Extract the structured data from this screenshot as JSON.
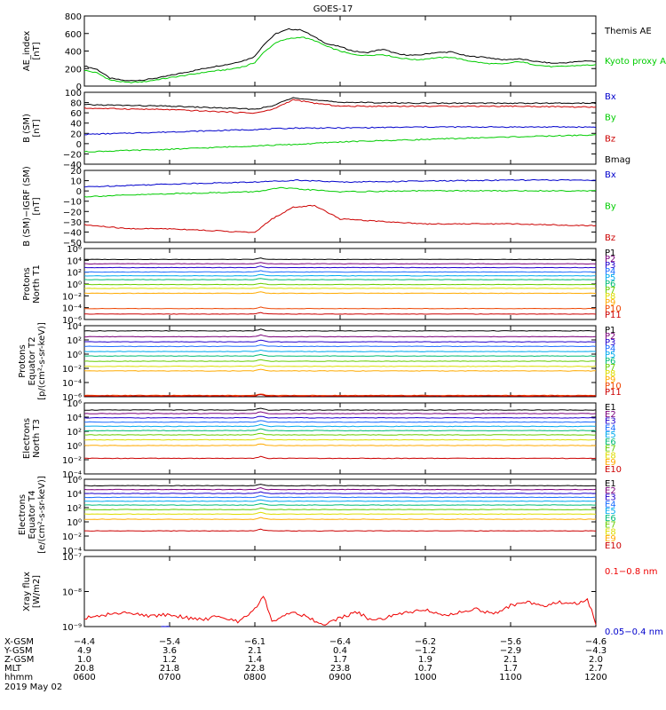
{
  "title": "GOES-17",
  "chart_data": [
    {
      "type": "line",
      "ylabel": "AE_index [nT]",
      "ylabel_lines": [
        "AE_index",
        "[nT]"
      ],
      "ylim": [
        0,
        800
      ],
      "yticks": [
        "800",
        "600",
        "400",
        "200",
        "0"
      ],
      "series": [
        {
          "name": "Themis AE",
          "color": "#000000",
          "x": [
            6.0,
            6.15,
            6.3,
            6.5,
            6.7,
            6.9,
            7.1,
            7.3,
            7.5,
            7.7,
            7.9,
            8.0,
            8.1,
            8.25,
            8.4,
            8.55,
            8.7,
            8.85,
            9.0,
            9.15,
            9.3,
            9.5,
            9.7,
            9.9,
            10.1,
            10.3,
            10.5,
            10.7,
            10.9,
            11.1,
            11.3,
            11.5,
            11.7,
            11.9,
            12.0
          ],
          "y": [
            230,
            190,
            90,
            60,
            70,
            100,
            140,
            180,
            220,
            250,
            300,
            340,
            470,
            600,
            650,
            640,
            560,
            480,
            450,
            400,
            380,
            420,
            360,
            350,
            380,
            390,
            340,
            330,
            300,
            310,
            280,
            260,
            270,
            290,
            280
          ]
        },
        {
          "name": "Kyoto proxy AE",
          "color": "#00cc00",
          "x": [
            6.0,
            6.15,
            6.3,
            6.5,
            6.7,
            6.9,
            7.1,
            7.3,
            7.5,
            7.7,
            7.9,
            8.0,
            8.1,
            8.25,
            8.4,
            8.55,
            8.7,
            8.85,
            9.0,
            9.15,
            9.3,
            9.5,
            9.7,
            9.9,
            10.1,
            10.3,
            10.5,
            10.7,
            10.9,
            11.1,
            11.3,
            11.5,
            11.7,
            11.9,
            12.0
          ],
          "y": [
            180,
            150,
            70,
            40,
            50,
            80,
            110,
            140,
            170,
            190,
            230,
            270,
            380,
            500,
            540,
            560,
            520,
            450,
            400,
            360,
            350,
            360,
            320,
            300,
            320,
            330,
            290,
            260,
            250,
            280,
            240,
            220,
            230,
            240,
            240
          ]
        }
      ]
    },
    {
      "type": "line",
      "ylabel": "B (SM) [nT]",
      "ylabel_lines": [
        "B (SM)",
        "[nT]"
      ],
      "ylim": [
        -45,
        100
      ],
      "yticks": [
        "100",
        "80",
        "60",
        "40",
        "20",
        "0",
        "−20",
        "−40"
      ],
      "series": [
        {
          "name": "Bx",
          "color": "#0000cc",
          "x": [
            6.0,
            7.0,
            8.0,
            8.5,
            9.0,
            10.0,
            11.0,
            12.0
          ],
          "y": [
            15,
            20,
            25,
            28,
            28,
            30,
            30,
            30
          ]
        },
        {
          "name": "By",
          "color": "#00cc00",
          "x": [
            6.0,
            7.0,
            8.0,
            8.5,
            9.0,
            10.0,
            11.0,
            12.0
          ],
          "y": [
            -20,
            -15,
            -8,
            -5,
            0,
            5,
            10,
            14
          ]
        },
        {
          "name": "Bz",
          "color": "#cc0000",
          "x": [
            6.0,
            7.0,
            8.0,
            8.2,
            8.45,
            8.7,
            9.0,
            10.0,
            11.0,
            12.0
          ],
          "y": [
            68,
            65,
            58,
            65,
            85,
            78,
            72,
            72,
            72,
            70
          ]
        },
        {
          "name": "Bmag",
          "color": "#000000",
          "x": [
            6.0,
            7.0,
            8.0,
            8.2,
            8.45,
            8.7,
            9.0,
            10.0,
            11.0,
            12.0
          ],
          "y": [
            75,
            72,
            66,
            72,
            90,
            84,
            80,
            78,
            78,
            78
          ]
        }
      ]
    },
    {
      "type": "line",
      "ylabel": "B (SM)−IGRF (SM) [nT]",
      "ylabel_lines": [
        "B (SM)−IGRF (SM)",
        "[nT]"
      ],
      "ylim": [
        -52,
        22
      ],
      "yticks": [
        "20",
        "10",
        "0",
        "−10",
        "−20",
        "−30",
        "−40",
        "−50"
      ],
      "series": [
        {
          "name": "Bx",
          "color": "#0000cc",
          "x": [
            6.0,
            7.0,
            8.0,
            8.5,
            9.0,
            10.0,
            11.0,
            12.0
          ],
          "y": [
            5,
            8,
            10,
            12,
            10,
            11,
            12,
            12
          ]
        },
        {
          "name": "By",
          "color": "#00cc00",
          "x": [
            6.0,
            7.0,
            8.0,
            8.3,
            9.0,
            10.0,
            11.0,
            12.0
          ],
          "y": [
            -5,
            -2,
            0,
            4,
            0,
            1,
            1,
            1
          ]
        },
        {
          "name": "Bz",
          "color": "#cc0000",
          "x": [
            6.0,
            6.5,
            7.0,
            7.5,
            8.0,
            8.2,
            8.45,
            8.7,
            9.0,
            10.0,
            11.0,
            12.0
          ],
          "y": [
            -34,
            -38,
            -38,
            -40,
            -42,
            -28,
            -16,
            -14,
            -28,
            -33,
            -33,
            -35
          ]
        }
      ]
    },
    {
      "type": "line",
      "ylabel": "Protons North T1",
      "ylabel_lines": [
        "Protons",
        "North T1"
      ],
      "yscale": "log",
      "ylim": [
        -7,
        6
      ],
      "yticks": [
        "10⁶",
        "10⁴",
        "10²",
        "10⁰",
        "10⁻²",
        "10⁻⁴",
        "10⁻⁶"
      ],
      "series": [
        {
          "name": "P1",
          "color": "#000000",
          "log10": 4.0
        },
        {
          "name": "P2",
          "color": "#7a007a",
          "log10": 3.2
        },
        {
          "name": "P3",
          "color": "#2200cc",
          "log10": 2.5
        },
        {
          "name": "P4",
          "color": "#1a6cff",
          "log10": 1.7
        },
        {
          "name": "P5",
          "color": "#00aaee",
          "log10": 1.0
        },
        {
          "name": "P6",
          "color": "#00bb77",
          "log10": 0.3
        },
        {
          "name": "P7",
          "color": "#66cc00",
          "log10": -0.6
        },
        {
          "name": "P8",
          "color": "#dddd00",
          "log10": -1.3
        },
        {
          "name": "P9",
          "color": "#ffaa00",
          "log10": -2.2
        },
        {
          "name": "P10",
          "color": "#ee4400",
          "log10": -5.0
        },
        {
          "name": "P11",
          "color": "#cc0000",
          "log10": -6.0
        }
      ]
    },
    {
      "type": "line",
      "ylabel": "Protons Equator T2 [p/(cm²-s-sr-keV)]",
      "ylabel_lines": [
        "Protons",
        "Equator T2",
        "[p/(cm²-s-sr-keV)]"
      ],
      "yscale": "log",
      "ylim": [
        -7,
        4
      ],
      "yticks": [
        "10⁴",
        "10²",
        "10⁰",
        "10⁻²",
        "10⁻⁴",
        "10⁻⁶"
      ],
      "series": [
        {
          "name": "P1",
          "color": "#000000",
          "log10": 3.2
        },
        {
          "name": "P2",
          "color": "#7a007a",
          "log10": 2.3
        },
        {
          "name": "P3",
          "color": "#2200cc",
          "log10": 1.5
        },
        {
          "name": "P4",
          "color": "#1a6cff",
          "log10": 0.8
        },
        {
          "name": "P5",
          "color": "#00aaee",
          "log10": 0.0
        },
        {
          "name": "P6",
          "color": "#00bb77",
          "log10": -0.7
        },
        {
          "name": "P7",
          "color": "#66cc00",
          "log10": -1.5
        },
        {
          "name": "P8",
          "color": "#dddd00",
          "log10": -2.3
        },
        {
          "name": "P9",
          "color": "#ffaa00",
          "log10": -3.0
        },
        {
          "name": "P10",
          "color": "#ee4400",
          "log10": -6.8
        },
        {
          "name": "P11",
          "color": "#cc0000",
          "log10": -6.9
        }
      ]
    },
    {
      "type": "line",
      "ylabel": "Electrons North T3",
      "ylabel_lines": [
        "Electrons",
        "North T3"
      ],
      "yscale": "log",
      "ylim": [
        -4,
        6
      ],
      "yticks": [
        "10⁶",
        "10⁴",
        "10²",
        "10⁰",
        "10⁻²",
        "10⁻⁴"
      ],
      "series": [
        {
          "name": "E1",
          "color": "#000000",
          "log10": 5.0
        },
        {
          "name": "E2",
          "color": "#7a007a",
          "log10": 4.5
        },
        {
          "name": "E3",
          "color": "#2200cc",
          "log10": 3.9
        },
        {
          "name": "E4",
          "color": "#1a6cff",
          "log10": 3.3
        },
        {
          "name": "E5",
          "color": "#00aaee",
          "log10": 2.7
        },
        {
          "name": "E6",
          "color": "#00bb77",
          "log10": 2.1
        },
        {
          "name": "E7",
          "color": "#66cc00",
          "log10": 1.5
        },
        {
          "name": "E8",
          "color": "#dddd00",
          "log10": 0.8
        },
        {
          "name": "E9",
          "color": "#ffaa00",
          "log10": 0.0
        },
        {
          "name": "E10",
          "color": "#cc0000",
          "log10": -1.8
        }
      ]
    },
    {
      "type": "line",
      "ylabel": "Electrons Equator T4 [e/(cm²-s-sr-keV)]",
      "ylabel_lines": [
        "Electrons",
        "Equator T4",
        "[e/(cm²-s-sr-keV)]"
      ],
      "yscale": "log",
      "ylim": [
        -5,
        6
      ],
      "yticks": [
        "10⁶",
        "10⁴",
        "10²",
        "10⁰",
        "10⁻²",
        "10⁻⁴"
      ],
      "series": [
        {
          "name": "E1",
          "color": "#000000",
          "log10": 5.0
        },
        {
          "name": "E2",
          "color": "#7a007a",
          "log10": 4.4
        },
        {
          "name": "E3",
          "color": "#2200cc",
          "log10": 3.8
        },
        {
          "name": "E4",
          "color": "#1a6cff",
          "log10": 3.2
        },
        {
          "name": "E5",
          "color": "#00aaee",
          "log10": 2.6
        },
        {
          "name": "E6",
          "color": "#00bb77",
          "log10": 2.0
        },
        {
          "name": "E7",
          "color": "#66cc00",
          "log10": 1.3
        },
        {
          "name": "E8",
          "color": "#dddd00",
          "log10": 0.6
        },
        {
          "name": "E9",
          "color": "#ffaa00",
          "log10": -0.2
        },
        {
          "name": "E10",
          "color": "#cc0000",
          "log10": -2.0
        }
      ]
    },
    {
      "type": "line",
      "ylabel": "Xray flux [W/m2]",
      "ylabel_lines": [
        "Xray flux",
        "[W/m2]"
      ],
      "yscale": "log",
      "ylim": [
        -9,
        -7
      ],
      "yticks": [
        "10⁻⁷",
        "10⁻⁸",
        "10⁻⁹"
      ],
      "series": [
        {
          "name": "0.1−0.8 nm",
          "color": "#ee0000",
          "x": [
            6.0,
            6.2,
            6.4,
            6.6,
            6.8,
            7.0,
            7.2,
            7.4,
            7.6,
            7.8,
            8.0,
            8.05,
            8.1,
            8.2,
            8.4,
            8.6,
            8.8,
            9.0,
            9.2,
            9.4,
            9.6,
            9.8,
            10.0,
            10.2,
            10.4,
            10.6,
            10.8,
            11.0,
            11.2,
            11.4,
            11.6,
            11.8,
            11.9,
            12.0
          ],
          "y": [
            -8.75,
            -8.7,
            -8.6,
            -8.65,
            -8.7,
            -8.65,
            -8.75,
            -8.8,
            -8.7,
            -8.85,
            -8.5,
            -8.3,
            -8.1,
            -8.85,
            -8.6,
            -8.7,
            -8.95,
            -8.75,
            -8.6,
            -8.85,
            -8.7,
            -8.6,
            -8.5,
            -8.7,
            -8.6,
            -8.5,
            -8.65,
            -8.4,
            -8.3,
            -8.4,
            -8.3,
            -8.35,
            -8.2,
            -8.9
          ]
        },
        {
          "name": "0.05−0.4 nm",
          "color": "#0000cc",
          "x": [
            6.9,
            7.0
          ],
          "y": [
            -9.05,
            -8.98
          ]
        }
      ]
    }
  ],
  "xaxis": {
    "row_labels": [
      "X-GSM",
      "Y-GSM",
      "Z-GSM",
      "MLT",
      "hhmm",
      "2019 May 02"
    ],
    "columns": [
      {
        "x_gsm": "−4.4",
        "y_gsm": "4.9",
        "z_gsm": "1.0",
        "mlt": "20.8",
        "hhmm": "0600"
      },
      {
        "x_gsm": "−5.4",
        "y_gsm": "3.6",
        "z_gsm": "1.2",
        "mlt": "21.8",
        "hhmm": "0700"
      },
      {
        "x_gsm": "−6.1",
        "y_gsm": "2.1",
        "z_gsm": "1.4",
        "mlt": "22.8",
        "hhmm": "0800"
      },
      {
        "x_gsm": "−6.4",
        "y_gsm": "0.4",
        "z_gsm": "1.7",
        "mlt": "23.8",
        "hhmm": "0900"
      },
      {
        "x_gsm": "−6.2",
        "y_gsm": "−1.2",
        "z_gsm": "1.9",
        "mlt": "0.7",
        "hhmm": "1000"
      },
      {
        "x_gsm": "−5.6",
        "y_gsm": "−2.9",
        "z_gsm": "2.1",
        "mlt": "1.7",
        "hhmm": "1100"
      },
      {
        "x_gsm": "−4.6",
        "y_gsm": "−4.3",
        "z_gsm": "2.0",
        "mlt": "2.7",
        "hhmm": "1200"
      }
    ],
    "xlim": [
      6.0,
      12.0
    ]
  }
}
